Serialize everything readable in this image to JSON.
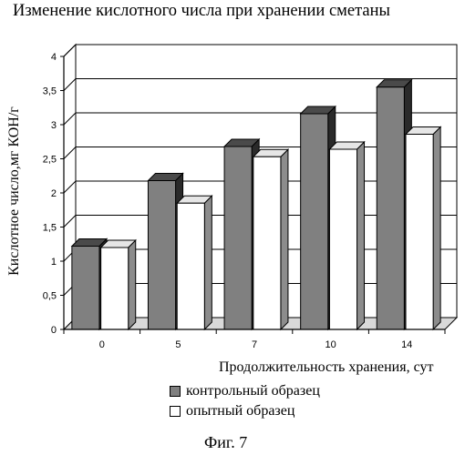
{
  "chart_data": {
    "type": "bar",
    "title": "Изменение кислотного числа при хранении сметаны",
    "xlabel": "Продолжительность хранения, сут",
    "ylabel": "Кислотное число,мг КОН/г",
    "categories": [
      "0",
      "5",
      "7",
      "10",
      "14"
    ],
    "series": [
      {
        "name": "контрольный образец",
        "values": [
          1.22,
          2.18,
          2.68,
          3.16,
          3.55
        ],
        "color": "#808080"
      },
      {
        "name": "опытный образец",
        "values": [
          1.2,
          1.85,
          2.53,
          2.64,
          2.86
        ],
        "color": "#ffffff"
      }
    ],
    "ylim": [
      0,
      4
    ],
    "yticks": [
      "0",
      "0,5",
      "1",
      "1,5",
      "2",
      "2,5",
      "3",
      "3,5",
      "4"
    ],
    "grid": true,
    "legend": "bottom",
    "caption": "Фиг. 7"
  }
}
